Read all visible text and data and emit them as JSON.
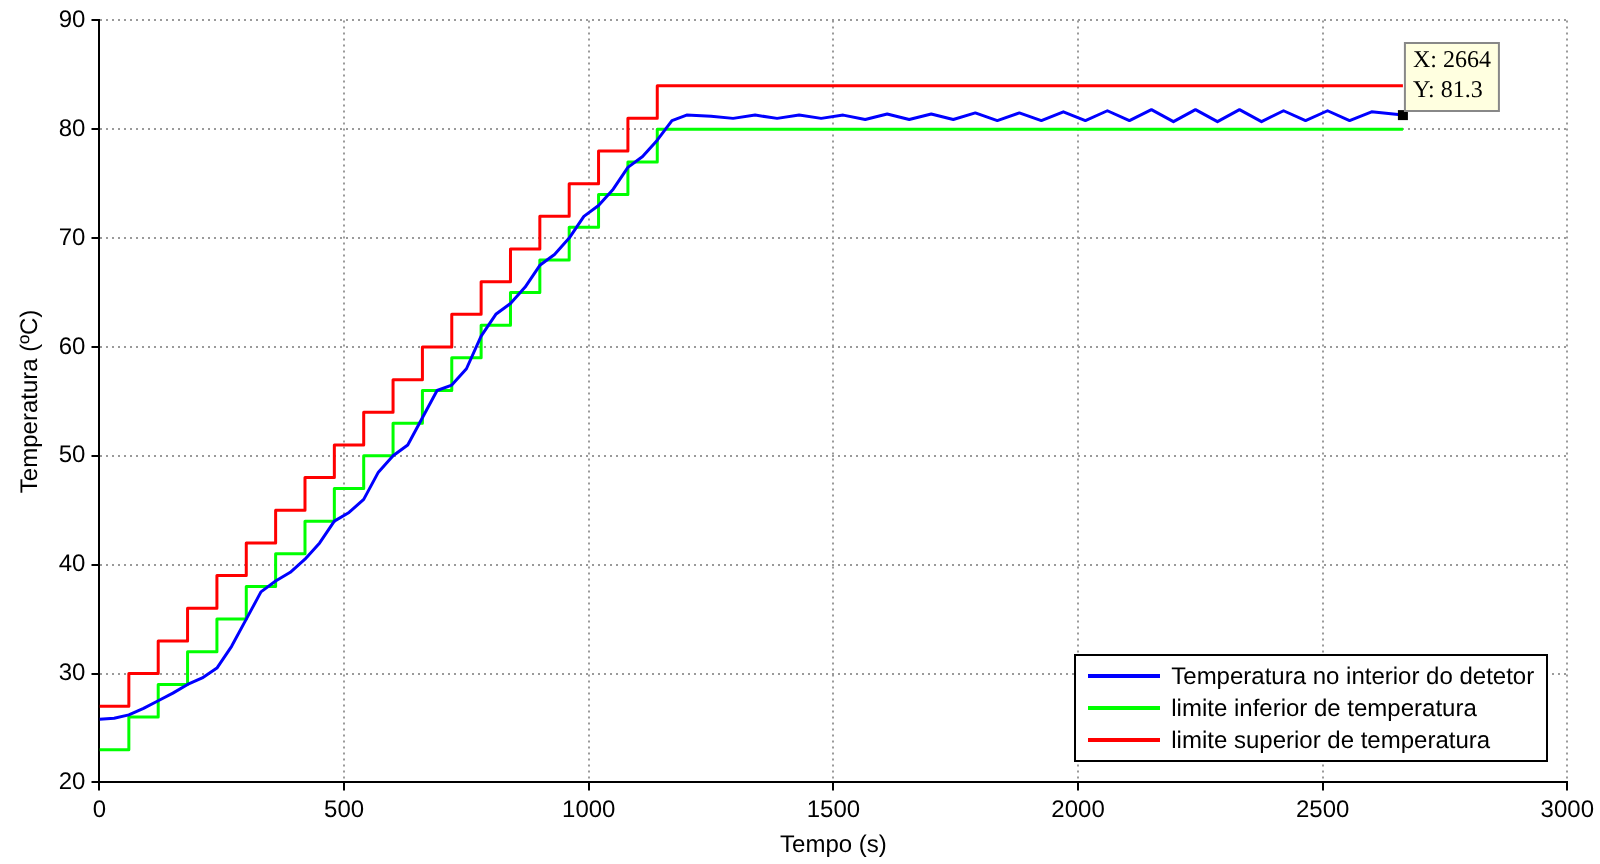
{
  "chart_data": {
    "type": "line",
    "xlabel": "Tempo (s)",
    "ylabel": "Temperatura (ºC)",
    "xlim": [
      0,
      3000
    ],
    "xticks": [
      0,
      500,
      1000,
      1500,
      2000,
      2500,
      3000
    ],
    "ylim": [
      20,
      90
    ],
    "yticks": [
      20,
      30,
      40,
      50,
      60,
      70,
      80,
      90
    ],
    "grid": true,
    "legend": "bottom right",
    "line_style": "solid",
    "marker": "none",
    "annotations": [
      {
        "text": "X: 2664\nY: 81.3",
        "x": 2664,
        "y": 81.3
      }
    ],
    "series": [
      {
        "name": "Temperatura no interior do detetor",
        "color": "#0000ff",
        "x": [
          0,
          30,
          60,
          90,
          120,
          150,
          180,
          210,
          240,
          270,
          300,
          330,
          360,
          390,
          420,
          450,
          480,
          510,
          540,
          570,
          600,
          630,
          660,
          690,
          720,
          750,
          780,
          810,
          840,
          870,
          900,
          930,
          960,
          990,
          1020,
          1050,
          1080,
          1110,
          1140,
          1170,
          1200,
          1250,
          1295,
          1340,
          1385,
          1430,
          1475,
          1520,
          1565,
          1610,
          1655,
          1700,
          1745,
          1790,
          1835,
          1880,
          1925,
          1970,
          2015,
          2060,
          2105,
          2150,
          2195,
          2240,
          2285,
          2330,
          2375,
          2420,
          2465,
          2510,
          2555,
          2600,
          2664
        ],
        "values": [
          25.8,
          25.9,
          26.2,
          26.8,
          27.5,
          28.2,
          29.0,
          29.6,
          30.5,
          32.5,
          35,
          37.5,
          38.5,
          39.3,
          40.5,
          42,
          44,
          44.8,
          46,
          48.5,
          50,
          51,
          53.5,
          56,
          56.5,
          58,
          61,
          63,
          64,
          65.5,
          67.5,
          68.5,
          70,
          72,
          73,
          74.5,
          76.5,
          77.5,
          79,
          80.8,
          81.3,
          81.2,
          81.0,
          81.3,
          81.0,
          81.3,
          81.0,
          81.3,
          80.9,
          81.4,
          80.9,
          81.4,
          80.9,
          81.5,
          80.8,
          81.5,
          80.8,
          81.6,
          80.8,
          81.7,
          80.8,
          81.8,
          80.7,
          81.8,
          80.7,
          81.8,
          80.7,
          81.7,
          80.8,
          81.7,
          80.8,
          81.6,
          81.3
        ]
      },
      {
        "name": "limite inferior de temperatura",
        "color": "#00ff00",
        "type": "step",
        "x": [
          0,
          60,
          120,
          180,
          240,
          300,
          360,
          420,
          480,
          540,
          600,
          660,
          720,
          780,
          840,
          900,
          960,
          1020,
          1080,
          1140,
          2664
        ],
        "values": [
          23,
          26,
          29,
          32,
          35,
          38,
          41,
          44,
          47,
          50,
          53,
          56,
          59,
          62,
          65,
          68,
          71,
          74,
          77,
          80,
          80
        ]
      },
      {
        "name": "limite superior de temperatura",
        "color": "#ff0000",
        "type": "step",
        "x": [
          0,
          60,
          120,
          180,
          240,
          300,
          360,
          420,
          480,
          540,
          600,
          660,
          720,
          780,
          840,
          900,
          960,
          1020,
          1080,
          1140,
          2664
        ],
        "values": [
          27,
          30,
          33,
          36,
          39,
          42,
          45,
          48,
          51,
          54,
          57,
          60,
          63,
          66,
          69,
          72,
          75,
          78,
          81,
          84,
          84
        ]
      }
    ]
  }
}
